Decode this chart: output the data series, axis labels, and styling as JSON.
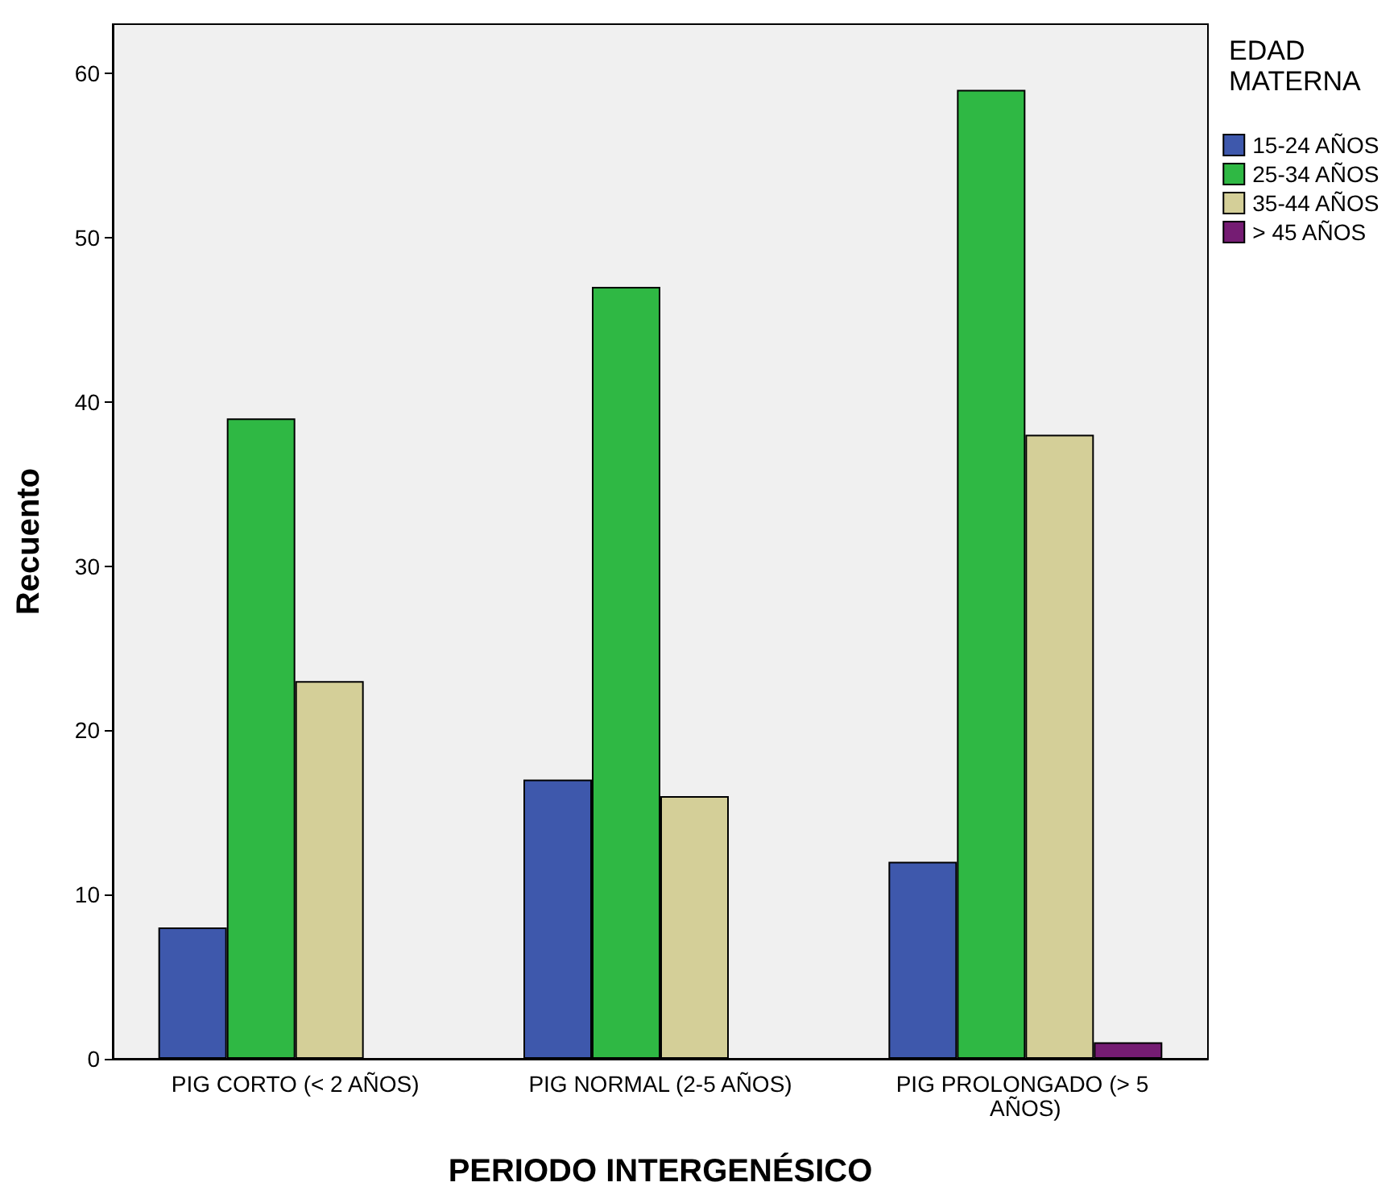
{
  "chart_data": {
    "type": "bar",
    "xlabel": "PERIODO INTERGENÉSICO",
    "ylabel": "Recuento",
    "legend_title": "EDAD MATERNA",
    "categories": [
      "PIG CORTO (< 2 AÑOS)",
      "PIG NORMAL (2-5 AÑOS)",
      "PIG PROLONGADO (> 5 AÑOS)"
    ],
    "series": [
      {
        "name": "15-24 AÑOS",
        "color": "#3e58ac",
        "values": [
          8,
          17,
          12
        ]
      },
      {
        "name": "25-34 AÑOS",
        "color": "#2fb844",
        "values": [
          39,
          47,
          59
        ]
      },
      {
        "name": "35-44 AÑOS",
        "color": "#d4cf98",
        "values": [
          23,
          16,
          38
        ]
      },
      {
        "name": "> 45 AÑOS",
        "color": "#751c73",
        "values": [
          null,
          null,
          1
        ]
      }
    ],
    "ylim": [
      0,
      63
    ],
    "yticks": [
      0,
      10,
      20,
      30,
      40,
      50,
      60
    ],
    "grid": false,
    "legend": "top right"
  }
}
